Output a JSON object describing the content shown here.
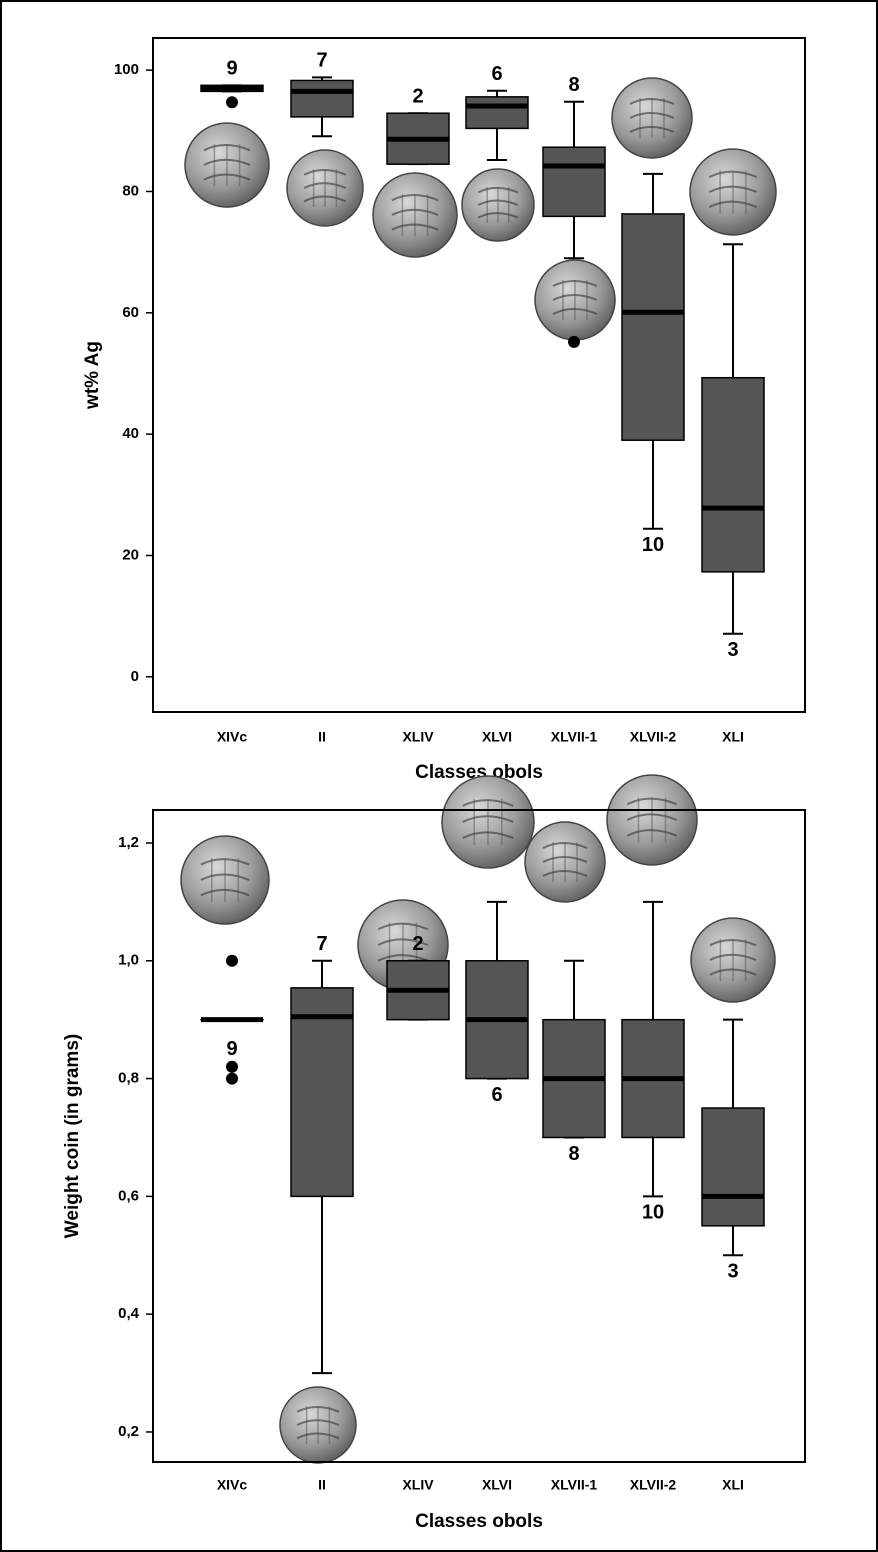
{
  "chart_data": [
    {
      "type": "boxplot",
      "xlabel": "Classes obols",
      "ylabel": "wt% Ag",
      "categories": [
        "XIVc",
        "II",
        "XLIV",
        "XLVI",
        "XLVII-1",
        "XLVII-2",
        "XLI"
      ],
      "ylim": [
        -5.8,
        105.3
      ],
      "yticks": [
        0,
        20,
        40,
        60,
        80,
        100
      ],
      "color": "#555555",
      "boxes": [
        {
          "whislo": 96.5,
          "q1": 96.5,
          "med": 97,
          "q3": 97.5,
          "whishi": 97.5,
          "fliers": [
            94.7
          ],
          "n": 9
        },
        {
          "whislo": 89.1,
          "q1": 92.3,
          "med": 96.5,
          "q3": 98.3,
          "whishi": 98.8,
          "fliers": [],
          "n": 7
        },
        {
          "whislo": 84.5,
          "q1": 84.5,
          "med": 88.6,
          "q3": 92.9,
          "whishi": 92.9,
          "fliers": [],
          "n": 2
        },
        {
          "whislo": 85.2,
          "q1": 90.4,
          "med": 94.1,
          "q3": 95.6,
          "whishi": 96.6,
          "fliers": [],
          "n": 6
        },
        {
          "whislo": 69.0,
          "q1": 75.9,
          "med": 84.2,
          "q3": 87.3,
          "whishi": 94.8,
          "fliers": [
            55.2
          ],
          "n": 8
        },
        {
          "whislo": 24.4,
          "q1": 39.0,
          "med": 60.1,
          "q3": 76.3,
          "whishi": 82.9,
          "fliers": [],
          "n": 10
        },
        {
          "whislo": 7.1,
          "q1": 17.3,
          "med": 27.8,
          "q3": 49.3,
          "whishi": 71.3,
          "fliers": [],
          "n": 3
        }
      ]
    },
    {
      "type": "boxplot",
      "xlabel": "Classes obols",
      "ylabel": "Weight coin (in grams)",
      "categories": [
        "XIVc",
        "II",
        "XLIV",
        "XLVI",
        "XLVII-1",
        "XLVII-2",
        "XLI"
      ],
      "ylim": [
        0.149,
        1.256
      ],
      "yticks": [
        {
          "value": 0.2,
          "label": "0,2"
        },
        {
          "value": 0.4,
          "label": "0,4"
        },
        {
          "value": 0.6,
          "label": "0,6"
        },
        {
          "value": 0.8,
          "label": "0,8"
        },
        {
          "value": 1.0,
          "label": "1,0"
        },
        {
          "value": 1.2,
          "label": "1,2"
        }
      ],
      "color": "#555555",
      "boxes": [
        {
          "whislo": 0.9,
          "q1": 0.9,
          "med": 0.9,
          "q3": 0.9,
          "whishi": 0.9,
          "fliers": [
            1.0,
            0.82,
            0.8
          ],
          "n": 9
        },
        {
          "whislo": 0.3,
          "q1": 0.6,
          "med": 0.905,
          "q3": 0.954,
          "whishi": 1.0,
          "fliers": [],
          "n": 7
        },
        {
          "whislo": 0.9,
          "q1": 0.9,
          "med": 0.95,
          "q3": 1.0,
          "whishi": 1.0,
          "fliers": [],
          "n": 2
        },
        {
          "whislo": 0.8,
          "q1": 0.8,
          "med": 0.9,
          "q3": 1.0,
          "whishi": 1.1,
          "fliers": [],
          "n": 6
        },
        {
          "whislo": 0.7,
          "q1": 0.7,
          "med": 0.8,
          "q3": 0.9,
          "whishi": 1.0,
          "fliers": [],
          "n": 8
        },
        {
          "whislo": 0.6,
          "q1": 0.7,
          "med": 0.8,
          "q3": 0.9,
          "whishi": 1.1,
          "fliers": [],
          "n": 10
        },
        {
          "whislo": 0.5,
          "q1": 0.55,
          "med": 0.6,
          "q3": 0.75,
          "whishi": 0.9,
          "fliers": [],
          "n": 3
        }
      ]
    }
  ]
}
